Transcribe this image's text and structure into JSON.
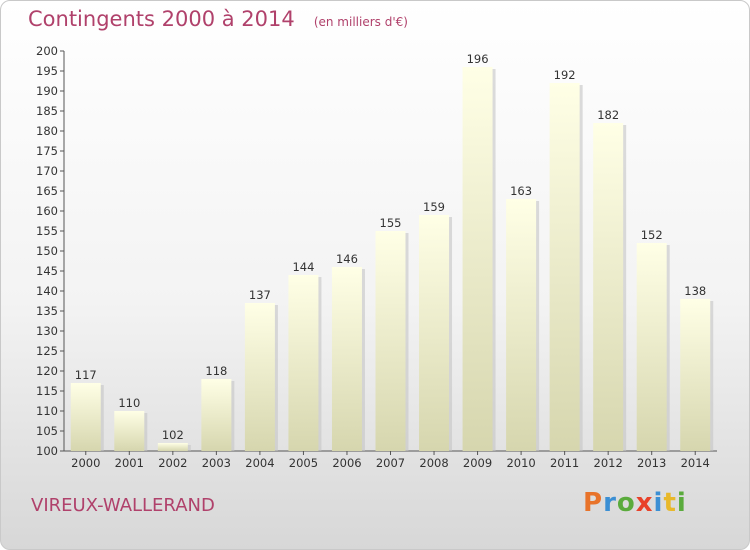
{
  "header": {
    "title": "Contingents 2000 à 2014",
    "subtitle": "(en milliers d'€)"
  },
  "footer": {
    "commune": "VIREUX-WALLERAND",
    "logo_letters": [
      "P",
      "r",
      "o",
      "x",
      "i",
      "t",
      "i"
    ],
    "logo_colors": [
      "#e8732a",
      "#3b8fd4",
      "#5aab3c",
      "#e8422a",
      "#3b8fd4",
      "#e8b82a",
      "#5aab3c"
    ]
  },
  "colors": {
    "accent": "#b0416b",
    "bar_top": "#ffffe8",
    "bar_bottom": "#d8d8b0"
  },
  "chart_data": {
    "type": "bar",
    "categories": [
      "2000",
      "2001",
      "2002",
      "2003",
      "2004",
      "2005",
      "2006",
      "2007",
      "2008",
      "2009",
      "2010",
      "2011",
      "2012",
      "2013",
      "2014"
    ],
    "values": [
      117,
      110,
      102,
      118,
      137,
      144,
      146,
      155,
      159,
      196,
      163,
      192,
      182,
      152,
      138
    ],
    "value_labels": [
      "117",
      "110",
      "102",
      "118",
      "137",
      "144",
      "146",
      "155",
      "159",
      "196",
      "163",
      "192",
      "182",
      "152",
      "138"
    ],
    "y_ticks": [
      "100",
      "105",
      "110",
      "115",
      "120",
      "125",
      "130",
      "135",
      "140",
      "145",
      "150",
      "155",
      "160",
      "165",
      "170",
      "175",
      "180",
      "185",
      "190",
      "195",
      "200"
    ],
    "ylim": [
      100,
      200
    ],
    "grid": false,
    "legend": "none"
  }
}
